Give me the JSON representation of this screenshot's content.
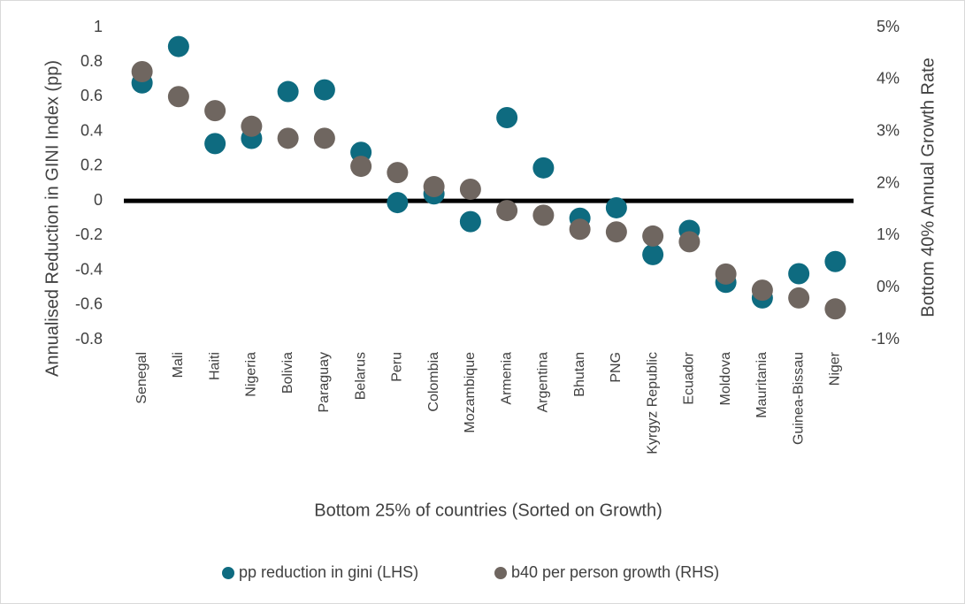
{
  "chart_data": {
    "type": "scatter",
    "x_label": "Bottom 25% of countries (Sorted on Growth)",
    "y_label": "Annualised Reduction in GINI Index (pp)",
    "y2_label": "Bottom 40% Annual Growth Rate",
    "categories": [
      "Senegal",
      "Mali",
      "Haiti",
      "Nigeria",
      "Bolivia",
      "Paraguay",
      "Belarus",
      "Peru",
      "Colombia",
      "Mozambique",
      "Armenia",
      "Argentina",
      "Bhutan",
      "PNG",
      "Kyrgyz Republic",
      "Ecuador",
      "Moldova",
      "Mauritania",
      "Guinea-Bissau",
      "Niger"
    ],
    "series": [
      {
        "name": "pp reduction in gini (LHS)",
        "color": "#0e6b80",
        "values": [
          0.68,
          0.89,
          0.33,
          0.36,
          0.63,
          0.64,
          0.28,
          -0.01,
          0.04,
          -0.12,
          0.48,
          0.19,
          -0.1,
          -0.04,
          -0.31,
          -0.17,
          -0.47,
          -0.56,
          -0.42,
          -0.35
        ]
      },
      {
        "name": "b40 per person growth (RHS)",
        "color": "#6f6660",
        "axis": "y2",
        "values": [
          4.15,
          3.67,
          3.4,
          3.1,
          2.87,
          2.87,
          2.33,
          2.21,
          1.94,
          1.89,
          1.48,
          1.39,
          1.12,
          1.07,
          0.99,
          0.88,
          0.26,
          -0.05,
          -0.2,
          -0.41
        ]
      }
    ],
    "ylim": [
      -0.8,
      1
    ],
    "yticks": [
      -0.8,
      -0.6,
      -0.4,
      -0.2,
      0,
      0.2,
      0.4,
      0.6,
      0.8,
      1
    ],
    "y2lim": [
      -1,
      5
    ],
    "y2ticks": [
      {
        "value": -1,
        "label": "-1%"
      },
      {
        "value": 0,
        "label": "0%"
      },
      {
        "value": 1,
        "label": "1%"
      },
      {
        "value": 2,
        "label": "2%"
      },
      {
        "value": 3,
        "label": "3%"
      },
      {
        "value": 4,
        "label": "4%"
      },
      {
        "value": 5,
        "label": "5%"
      }
    ],
    "legend": "bottom"
  }
}
